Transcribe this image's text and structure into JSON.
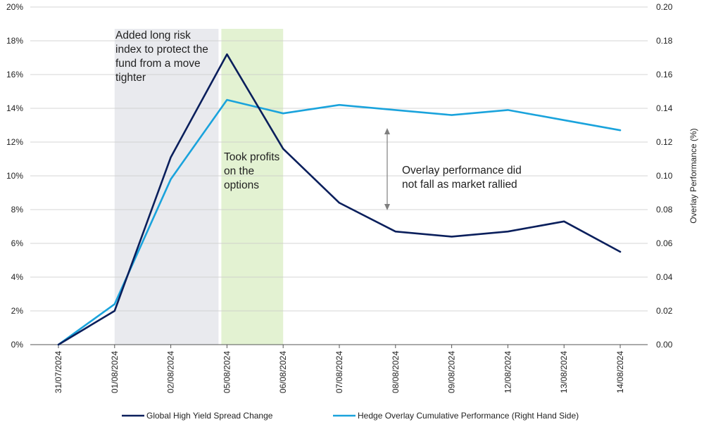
{
  "chart_data": {
    "type": "line",
    "categories": [
      "31/07/2024",
      "01/08/2024",
      "02/08/2024",
      "05/08/2024",
      "06/08/2024",
      "07/08/2024",
      "08/08/2024",
      "09/08/2024",
      "12/08/2024",
      "13/08/2024",
      "14/08/2024"
    ],
    "series": [
      {
        "name": "Global High Yield Spread Change",
        "axis": "left",
        "color": "#0a1f5c",
        "values": [
          0.0,
          2.0,
          11.1,
          17.2,
          11.6,
          8.4,
          6.7,
          6.4,
          6.7,
          7.3,
          5.5
        ]
      },
      {
        "name": "Hedge Overlay Cumulative Performance (Right Hand Side)",
        "axis": "right",
        "color": "#1aa3dc",
        "values": [
          0.0,
          0.024,
          0.098,
          0.145,
          0.137,
          0.142,
          0.139,
          0.136,
          0.139,
          0.133,
          0.127
        ]
      }
    ],
    "y_left": {
      "min": 0,
      "max": 20,
      "step": 2,
      "tick_labels": [
        "0%",
        "2%",
        "4%",
        "6%",
        "8%",
        "10%",
        "12%",
        "14%",
        "16%",
        "18%",
        "20%"
      ]
    },
    "y_right": {
      "min": 0,
      "max": 0.2,
      "step": 0.02,
      "label": "Overlay Performance (%)",
      "tick_labels": [
        "0.00",
        "0.02",
        "0.04",
        "0.06",
        "0.08",
        "0.10",
        "0.12",
        "0.14",
        "0.16",
        "0.18",
        "0.20"
      ]
    },
    "shaded_regions": [
      {
        "from": "01/08/2024",
        "to": "05/08/2024",
        "color": "#e9eaee"
      },
      {
        "from": "05/08/2024",
        "to": "06/08/2024",
        "color": "#e3f2d2"
      }
    ],
    "annotations": [
      {
        "id": "added",
        "lines": [
          "Added long risk",
          "index to protect the",
          "fund from a move",
          "tighter"
        ]
      },
      {
        "id": "took",
        "lines": [
          "Took profits",
          "on the",
          "options"
        ]
      },
      {
        "id": "overlay",
        "lines": [
          "Overlay performance did",
          "not fall as market rallied"
        ]
      }
    ],
    "grid": true,
    "legend_position": "bottom"
  },
  "colors": {
    "grid": "#c8c8c8",
    "axis": "#555555",
    "arrow": "#7f7f7f"
  }
}
